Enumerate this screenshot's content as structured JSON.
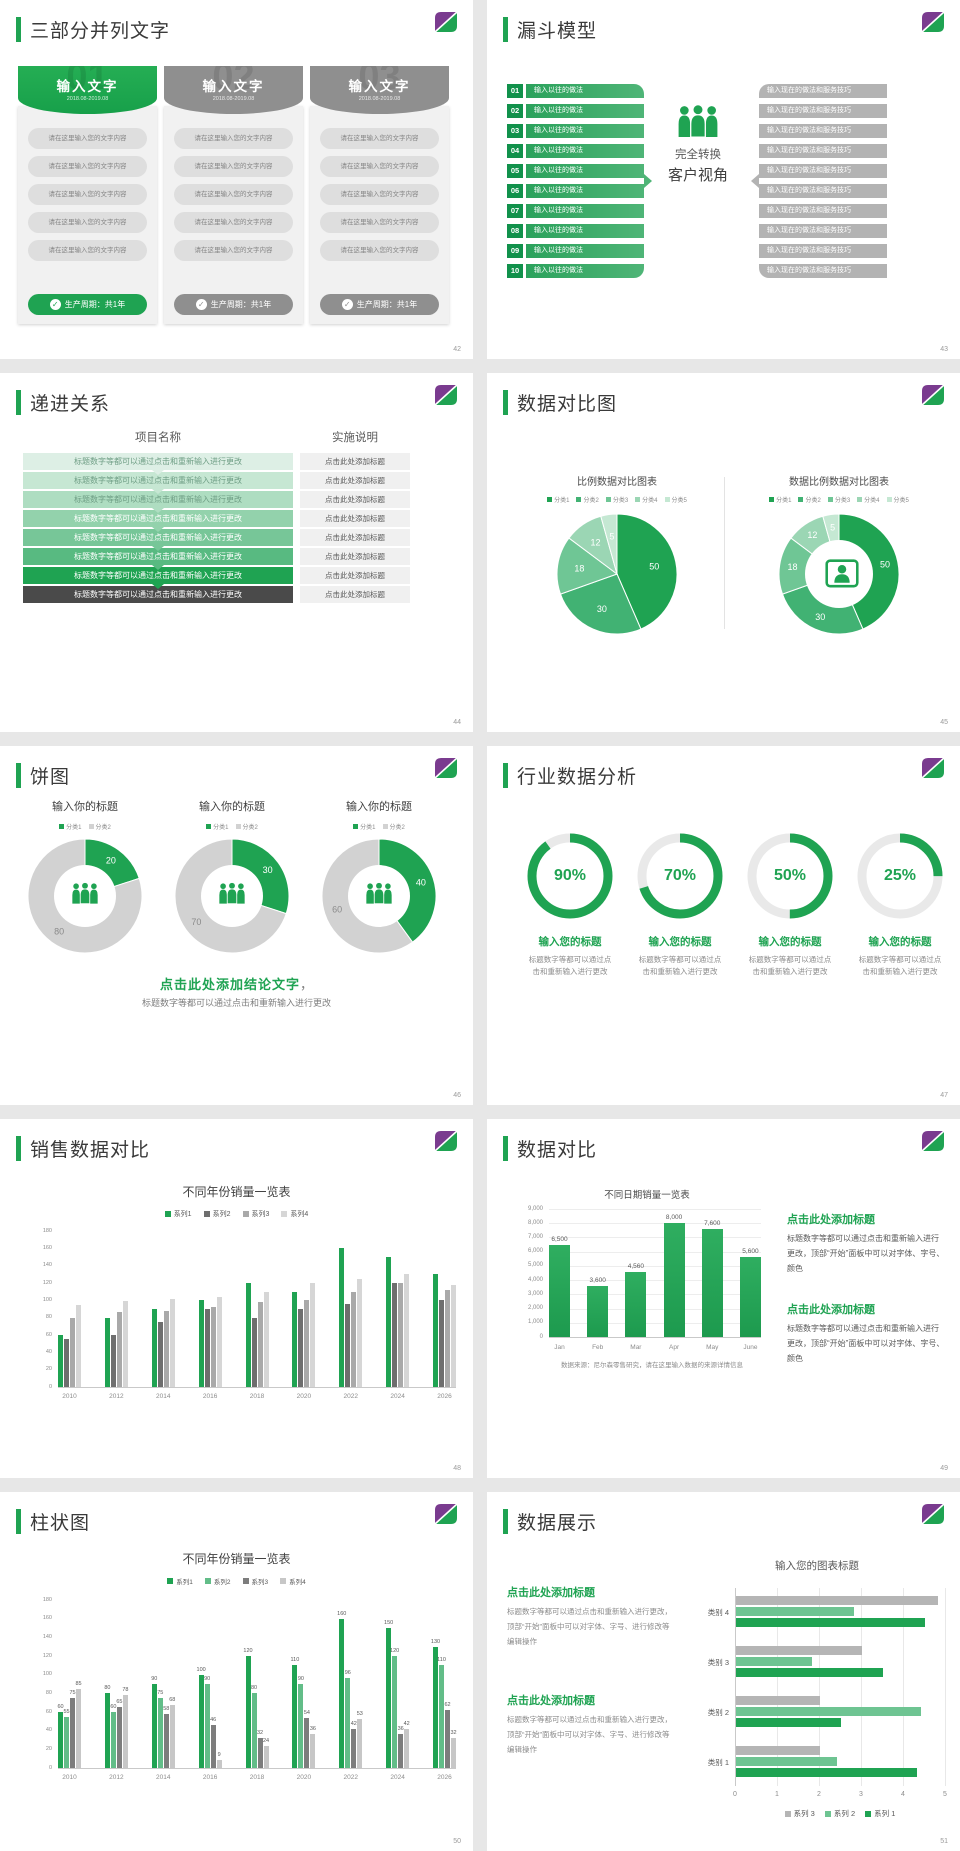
{
  "colors": {
    "green": "#1fa352",
    "green_dark": "#12924a",
    "green_mid": "#3cab67",
    "purple": "#7a3b8f",
    "gray_header": "#8f8f8f",
    "card_bg": "#f1f1f1",
    "pill_bg": "#dedede",
    "pill_text": "#858585",
    "funnel_gray": "#b3b3b3",
    "cell_bg": "#f0f0f0",
    "text_dark": "#3a3a3a",
    "text_mid": "#595959",
    "text_light": "#8c8c8c",
    "progress_rows": [
      "#ddefe5",
      "#c6e7d3",
      "#aeddc1",
      "#93d2ac",
      "#77c698",
      "#58ba81",
      "#1fa352",
      "#4a4a4a"
    ],
    "progress_texts": [
      "#6f9e85",
      "#6f9e85",
      "#6f9e85",
      "#ffffff",
      "#ffffff",
      "#ffffff",
      "#ffffff",
      "#ffffff"
    ],
    "pie_palette": [
      "#1fa352",
      "#41b273",
      "#6fc695",
      "#9bd6b4",
      "#c5e8d3"
    ],
    "donut_gray": "#d2d2d2",
    "gauge_track": "#e9e9e9",
    "bar48": [
      "#1fa352",
      "#6e6e6e",
      "#a9a9a9",
      "#d6d6d6"
    ],
    "bar50": [
      "#1fa352",
      "#62bd88",
      "#7d7d7d",
      "#c7c7c7"
    ],
    "bar51": [
      "#b5b5b5",
      "#6ec492",
      "#1fa352"
    ]
  },
  "slides": {
    "s42": {
      "title": "三部分并列文字",
      "page": "42",
      "pill": "请在这里输入您的文字内容",
      "pill_count": 5,
      "footer": "生产周期：共1年",
      "check": "✓",
      "cards": [
        {
          "num": "01",
          "name": "输入文字",
          "date": "2018.08-2019.08",
          "theme": "green"
        },
        {
          "num": "02",
          "name": "输入文字",
          "date": "2018.08-2019.08",
          "theme": "gray"
        },
        {
          "num": "03",
          "name": "输入文字",
          "date": "2018.08-2019.08",
          "theme": "gray"
        }
      ]
    },
    "s43": {
      "title": "漏斗模型",
      "page": "43",
      "steps": [
        "01",
        "02",
        "03",
        "04",
        "05",
        "06",
        "07",
        "08",
        "09",
        "10"
      ],
      "left_label": "输入以往的做法",
      "right_label": "输入现在的做法和服务技巧",
      "center_top": "完全转换",
      "center_bottom": "客户视角"
    },
    "s44": {
      "title": "递进关系",
      "page": "44",
      "header_left": "项目名称",
      "header_right": "实施说明",
      "left_label": "标题数字等都可以通过点击和重新输入进行更改",
      "right_label": "点击此处添加标题",
      "row_count": 8
    },
    "s45": {
      "title": "数据对比图",
      "page": "45",
      "legend": [
        "分类1",
        "分类2",
        "分类3",
        "分类4",
        "分类5"
      ],
      "charts": [
        {
          "kind": "pie",
          "title": "比例数据对比图表",
          "values": [
            50,
            30,
            18,
            12,
            5
          ]
        },
        {
          "kind": "donut",
          "title": "数据比例数据对比图表",
          "values": [
            50,
            30,
            18,
            12,
            5
          ],
          "center_icon": "person-badge-icon"
        }
      ]
    },
    "s46": {
      "title": "饼图",
      "page": "46",
      "chart_title": "输入你的标题",
      "legend": [
        "分类1",
        "分类2"
      ],
      "values": [
        [
          20,
          80
        ],
        [
          30,
          70
        ],
        [
          40,
          60
        ]
      ],
      "conclusion": "点击此处添加结论文字",
      "conclusion_mark": "，",
      "note": "标题数字等都可以通过点击和重新输入进行更改"
    },
    "s47": {
      "title": "行业数据分析",
      "page": "47",
      "pcts": [
        90,
        70,
        50,
        25
      ],
      "item_label": "输入您的标题",
      "item_body": "标题数字等都可以通过点击和重新输入进行更改"
    },
    "s48": {
      "title": "销售数据对比",
      "page": "48",
      "chart": {
        "title": "不同年份销量一览表",
        "legend": [
          "系列1",
          "系列2",
          "系列3",
          "系列4"
        ],
        "categories": [
          "2010",
          "2012",
          "2014",
          "2016",
          "2018",
          "2020",
          "2022",
          "2024",
          "2026"
        ],
        "series": [
          [
            60,
            80,
            90,
            100,
            120,
            110,
            160,
            150,
            130
          ],
          [
            55,
            60,
            75,
            90,
            80,
            90,
            96,
            120,
            100
          ],
          [
            80,
            86,
            88,
            92,
            98,
            100,
            110,
            120,
            112
          ],
          [
            95,
            99,
            102,
            104,
            110,
            120,
            125,
            130,
            118
          ]
        ],
        "ymax": 180,
        "ystep": 20
      }
    },
    "s49": {
      "title": "数据对比",
      "page": "49",
      "chart": {
        "title": "不同日期销量一览表",
        "categories": [
          "Jan",
          "Feb",
          "Mar",
          "Apr",
          "May",
          "June"
        ],
        "values": [
          6500,
          3600,
          4560,
          8000,
          7600,
          5600
        ],
        "value_labels": [
          "6,500",
          "3,600",
          "4,560",
          "8,000",
          "7,600",
          "5,600"
        ],
        "ymax": 9000,
        "ytick_labels": [
          "9,000",
          "8,000",
          "7,000",
          "6,000",
          "5,000",
          "4,000",
          "3,000",
          "2,000",
          "1,000",
          "0"
        ]
      },
      "caption": "数据来源：尼尔森零售研究，请在这里输入数据的来源详情信息",
      "block_head": "点击此处添加标题",
      "block_body": "标题数字等都可以通过点击和重新输入进行更改，顶部“开始”面板中可以对字体、字号、颜色",
      "block_count": 2
    },
    "s50": {
      "title": "柱状图",
      "page": "50",
      "chart": {
        "title": "不同年份销量一览表",
        "legend": [
          "系列1",
          "系列2",
          "系列3",
          "系列4"
        ],
        "categories": [
          "2010",
          "2012",
          "2014",
          "2016",
          "2018",
          "2020",
          "2022",
          "2024",
          "2026"
        ],
        "series": [
          [
            60,
            80,
            90,
            100,
            120,
            110,
            160,
            150,
            130
          ],
          [
            55,
            60,
            75,
            90,
            80,
            90,
            96,
            120,
            110
          ],
          [
            75,
            65,
            58,
            46,
            32,
            54,
            42,
            36,
            62
          ],
          [
            85,
            78,
            68,
            9,
            24,
            36,
            53,
            42,
            32
          ]
        ],
        "ymax": 180,
        "ystep": 20,
        "show_labels": true
      }
    },
    "s51": {
      "title": "数据展示",
      "page": "51",
      "block_head": "点击此处添加标题",
      "block_body": "标题数字等都可以通过点击和重新输入进行更改，顶部“开始”面板中可以对字体、字号、进行修改等编辑操作",
      "block_count": 2,
      "chart": {
        "title": "输入您的图表标题",
        "categories": [
          "类别 4",
          "类别 3",
          "类别 2",
          "类别 1"
        ],
        "series": [
          {
            "name": "系列 3",
            "values": [
              4.8,
              3.0,
              2.0,
              2.0
            ]
          },
          {
            "name": "系列 2",
            "values": [
              2.8,
              1.8,
              4.4,
              2.4
            ]
          },
          {
            "name": "系列 1",
            "values": [
              4.5,
              3.5,
              2.5,
              4.3
            ]
          }
        ],
        "xmax": 5,
        "xticks": [
          "0",
          "1",
          "2",
          "3",
          "4",
          "5"
        ]
      }
    }
  },
  "chart_data": [
    {
      "type": "pie",
      "title": "比例数据对比图表",
      "labels": [
        "分类1",
        "分类2",
        "分类3",
        "分类4",
        "分类5"
      ],
      "values": [
        50,
        30,
        18,
        12,
        5
      ]
    },
    {
      "type": "pie",
      "title": "数据比例数据对比图表",
      "labels": [
        "分类1",
        "分类2",
        "分类3",
        "分类4",
        "分类5"
      ],
      "values": [
        50,
        30,
        18,
        12,
        5
      ],
      "donut": true
    },
    {
      "type": "pie",
      "title": "输入你的标题 ×3",
      "labels": [
        "分类1",
        "分类2"
      ],
      "values_list": [
        [
          20,
          80
        ],
        [
          30,
          70
        ],
        [
          40,
          60
        ]
      ],
      "donut": true
    },
    {
      "type": "pie",
      "title": "行业数据分析 gauges",
      "values": [
        90,
        70,
        50,
        25
      ],
      "unit": "%"
    },
    {
      "type": "bar",
      "title": "不同年份销量一览表(48)",
      "categories": [
        "2010",
        "2012",
        "2014",
        "2016",
        "2018",
        "2020",
        "2022",
        "2024",
        "2026"
      ],
      "series": [
        {
          "name": "系列1",
          "values": [
            60,
            80,
            90,
            100,
            120,
            110,
            160,
            150,
            130
          ]
        },
        {
          "name": "系列2",
          "values": [
            55,
            60,
            75,
            90,
            80,
            90,
            96,
            120,
            100
          ]
        },
        {
          "name": "系列3",
          "values": [
            80,
            86,
            88,
            92,
            98,
            100,
            110,
            120,
            112
          ]
        },
        {
          "name": "系列4",
          "values": [
            95,
            99,
            102,
            104,
            110,
            120,
            125,
            130,
            118
          ]
        }
      ],
      "ylim": [
        0,
        180
      ]
    },
    {
      "type": "bar",
      "title": "不同日期销量一览表",
      "categories": [
        "Jan",
        "Feb",
        "Mar",
        "Apr",
        "May",
        "June"
      ],
      "values": [
        6500,
        3600,
        4560,
        8000,
        7600,
        5600
      ],
      "ylim": [
        0,
        9000
      ]
    },
    {
      "type": "bar",
      "title": "不同年份销量一览表(50)",
      "categories": [
        "2010",
        "2012",
        "2014",
        "2016",
        "2018",
        "2020",
        "2022",
        "2024",
        "2026"
      ],
      "series": [
        {
          "name": "系列1",
          "values": [
            60,
            80,
            90,
            100,
            120,
            110,
            160,
            150,
            130
          ]
        },
        {
          "name": "系列2",
          "values": [
            55,
            60,
            75,
            90,
            80,
            90,
            96,
            120,
            110
          ]
        },
        {
          "name": "系列3",
          "values": [
            75,
            65,
            58,
            46,
            32,
            54,
            42,
            36,
            62
          ]
        },
        {
          "name": "系列4",
          "values": [
            85,
            78,
            68,
            9,
            24,
            36,
            53,
            42,
            32
          ]
        }
      ],
      "ylim": [
        0,
        180
      ]
    },
    {
      "type": "bar",
      "title": "输入您的图表标题",
      "orientation": "horizontal",
      "categories": [
        "类别 4",
        "类别 3",
        "类别 2",
        "类别 1"
      ],
      "series": [
        {
          "name": "系列 3",
          "values": [
            4.8,
            3.0,
            2.0,
            2.0
          ]
        },
        {
          "name": "系列 2",
          "values": [
            2.8,
            1.8,
            4.4,
            2.4
          ]
        },
        {
          "name": "系列 1",
          "values": [
            4.5,
            3.5,
            2.5,
            4.3
          ]
        }
      ],
      "xlim": [
        0,
        5
      ]
    }
  ]
}
